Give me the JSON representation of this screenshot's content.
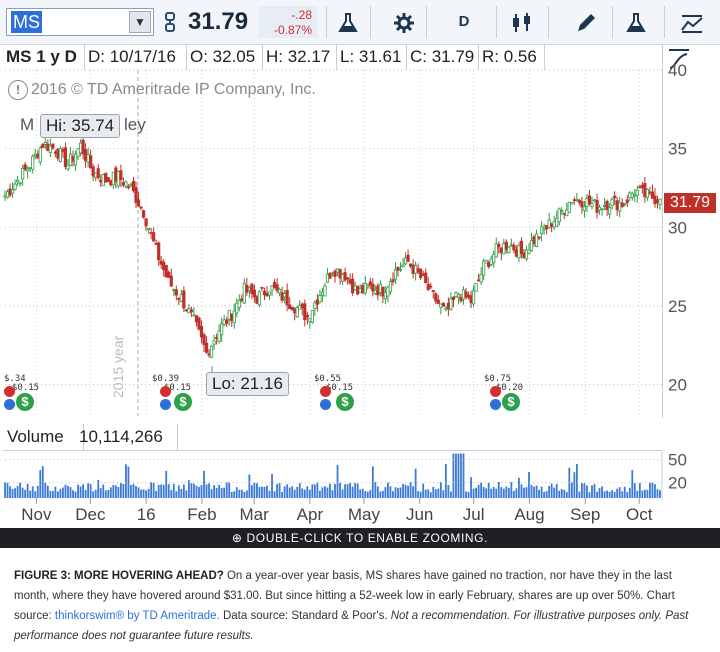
{
  "toolbar": {
    "symbol": "MS",
    "last_price": "31.79",
    "change": "-.28",
    "change_pct": "-0.87%",
    "period_button": "D",
    "accent_color": "#2e6fd8",
    "down_color": "#d23030",
    "icons": [
      "link-icon",
      "flask-icon",
      "gear-icon",
      "candle-style-icon",
      "pencil-icon",
      "flask-icon",
      "chart-style-icon"
    ]
  },
  "study_bar": {
    "title": "MS 1 y D",
    "date": "D: 10/17/16",
    "open": "O: 32.05",
    "high": "H: 32.17",
    "low": "L: 31.61",
    "close": "C: 31.79",
    "range": "R: 0.56"
  },
  "copyright": "2016 © TD Ameritrade IP Company, Inc.",
  "watermark_partial": "M",
  "watermark_partial_2": "ley",
  "year_marker": "2015 year",
  "hi_label": "Hi: 35.74",
  "lo_label": "Lo: 21.16",
  "price_tag": "31.79",
  "volume": {
    "label": "Volume",
    "value": "10,114,266",
    "axis_ticks": [
      "50",
      "20"
    ]
  },
  "zoom_bar": {
    "text": "DOUBLE-CLICK TO ENABLE ZOOMING."
  },
  "caption": {
    "heading": "FIGURE 3: MORE HOVERING AHEAD?",
    "body": " On a year-over year basis, MS shares have gained no traction, nor have they in the last month, where they have hovered around $31.00. But since hitting a 52-week low in early February, shares are up over 50%. Chart source: ",
    "source_link": "thinkorswim® by TD Ameritrade.",
    "data_source": "  Data source: Standard & Poor's. ",
    "disclaimer": "Not a recommendation. For illustrative purposes only. Past performance does not guarantee future results."
  },
  "events": [
    {
      "month": "Oct",
      "label": "$.34"
    },
    {
      "month": "Oct",
      "label": "$0.15"
    },
    {
      "month": "Jan",
      "label": "$0.39"
    },
    {
      "month": "Jan",
      "label": "$0.15"
    },
    {
      "month": "Apr",
      "label": "$0.55"
    },
    {
      "month": "Apr",
      "label": "$0.15"
    },
    {
      "month": "Jul",
      "label": "$0.75"
    },
    {
      "month": "Jul",
      "label": "$0.20"
    }
  ],
  "chart_data": {
    "type": "candlestick",
    "x_range": [
      "2015-10-19",
      "2016-10-17"
    ],
    "ylim": [
      18,
      40
    ],
    "y_ticks": [
      40,
      35,
      30,
      25,
      20
    ],
    "x_ticks": [
      "Nov",
      "Dec",
      "16",
      "Feb",
      "Mar",
      "Apr",
      "May",
      "Jun",
      "Jul",
      "Aug",
      "Sep",
      "Oct"
    ],
    "grid": true,
    "up_color": "#2e9e44",
    "down_color": "#c0302a",
    "close_series": [
      {
        "date": "2015-10-19",
        "close": 32.0
      },
      {
        "date": "2015-10-26",
        "close": 33.0
      },
      {
        "date": "2015-11-02",
        "close": 34.0
      },
      {
        "date": "2015-11-09",
        "close": 35.3
      },
      {
        "date": "2015-11-16",
        "close": 35.0
      },
      {
        "date": "2015-11-23",
        "close": 34.0
      },
      {
        "date": "2015-11-30",
        "close": 35.2
      },
      {
        "date": "2015-12-07",
        "close": 33.5
      },
      {
        "date": "2015-12-14",
        "close": 33.0
      },
      {
        "date": "2015-12-21",
        "close": 33.2
      },
      {
        "date": "2015-12-28",
        "close": 32.5
      },
      {
        "date": "2016-01-04",
        "close": 31.0
      },
      {
        "date": "2016-01-11",
        "close": 28.5
      },
      {
        "date": "2016-01-18",
        "close": 26.5
      },
      {
        "date": "2016-01-25",
        "close": 25.5
      },
      {
        "date": "2016-02-01",
        "close": 24.0
      },
      {
        "date": "2016-02-08",
        "close": 22.0
      },
      {
        "date": "2016-02-15",
        "close": 23.5
      },
      {
        "date": "2016-02-22",
        "close": 24.5
      },
      {
        "date": "2016-02-29",
        "close": 26.0
      },
      {
        "date": "2016-03-07",
        "close": 25.5
      },
      {
        "date": "2016-03-14",
        "close": 26.2
      },
      {
        "date": "2016-03-21",
        "close": 25.6
      },
      {
        "date": "2016-03-28",
        "close": 25.0
      },
      {
        "date": "2016-04-04",
        "close": 24.3
      },
      {
        "date": "2016-04-11",
        "close": 25.8
      },
      {
        "date": "2016-04-18",
        "close": 27.4
      },
      {
        "date": "2016-04-25",
        "close": 27.0
      },
      {
        "date": "2016-05-02",
        "close": 25.8
      },
      {
        "date": "2016-05-09",
        "close": 26.2
      },
      {
        "date": "2016-05-16",
        "close": 26.0
      },
      {
        "date": "2016-05-23",
        "close": 27.2
      },
      {
        "date": "2016-05-30",
        "close": 27.8
      },
      {
        "date": "2016-06-06",
        "close": 26.8
      },
      {
        "date": "2016-06-13",
        "close": 25.6
      },
      {
        "date": "2016-06-20",
        "close": 24.5
      },
      {
        "date": "2016-06-27",
        "close": 25.8
      },
      {
        "date": "2016-07-04",
        "close": 25.3
      },
      {
        "date": "2016-07-11",
        "close": 27.5
      },
      {
        "date": "2016-07-18",
        "close": 28.5
      },
      {
        "date": "2016-07-25",
        "close": 29.0
      },
      {
        "date": "2016-08-01",
        "close": 28.3
      },
      {
        "date": "2016-08-08",
        "close": 29.2
      },
      {
        "date": "2016-08-15",
        "close": 30.0
      },
      {
        "date": "2016-08-22",
        "close": 30.8
      },
      {
        "date": "2016-08-29",
        "close": 31.8
      },
      {
        "date": "2016-09-05",
        "close": 31.7
      },
      {
        "date": "2016-09-12",
        "close": 31.3
      },
      {
        "date": "2016-09-19",
        "close": 31.6
      },
      {
        "date": "2016-09-26",
        "close": 31.5
      },
      {
        "date": "2016-10-03",
        "close": 32.3
      },
      {
        "date": "2016-10-10",
        "close": 32.0
      },
      {
        "date": "2016-10-17",
        "close": 31.79
      }
    ],
    "hi": {
      "date": "2015-11-09",
      "value": 35.74
    },
    "lo": {
      "date": "2016-02-11",
      "value": 21.16
    },
    "last": 31.79,
    "volume": {
      "ylim": [
        0,
        60
      ],
      "typical_millions": 15,
      "last": 10114266
    }
  }
}
